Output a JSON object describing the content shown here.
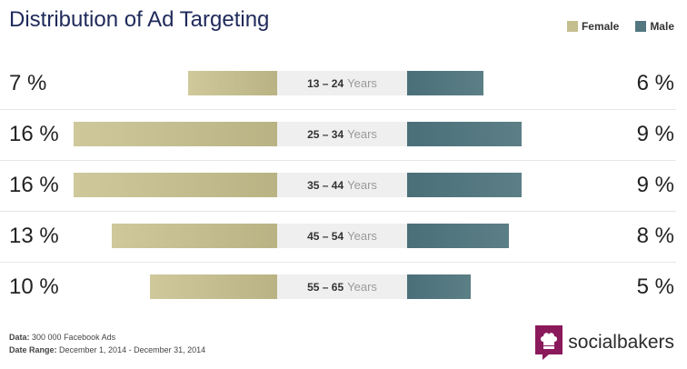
{
  "title": "Distribution of Ad Targeting",
  "legend": {
    "female_label": "Female",
    "male_label": "Male"
  },
  "colors": {
    "female": "#c5be8f",
    "male": "#537780",
    "title": "#1f2a5a"
  },
  "footer": {
    "data_label": "Data:",
    "data_value": "300 000 Facebook Ads",
    "range_label": "Date Range:",
    "range_value": "December 1, 2014 - December 31, 2014"
  },
  "brand": {
    "name": "socialbakers",
    "icon": "chef-hat-icon"
  },
  "chart_data": {
    "type": "bar",
    "title": "Distribution of Ad Targeting",
    "categories": [
      "13 – 24",
      "25 – 34",
      "35 – 44",
      "45 – 54",
      "55 – 65"
    ],
    "category_unit": "Years",
    "series": [
      {
        "name": "Female",
        "values": [
          7,
          16,
          16,
          13,
          10
        ],
        "labels": [
          "7 %",
          "16 %",
          "16 %",
          "13 %",
          "10 %"
        ]
      },
      {
        "name": "Male",
        "values": [
          6,
          9,
          9,
          8,
          5
        ],
        "labels": [
          "6 %",
          "9 %",
          "9 %",
          "8 %",
          "5 %"
        ]
      }
    ],
    "legend_position": "top-right",
    "grid": false
  }
}
